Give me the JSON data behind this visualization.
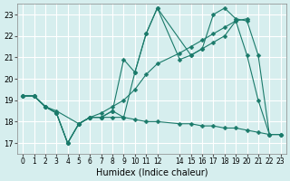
{
  "xlabel": "Humidex (Indice chaleur)",
  "background_color": "#d6eeee",
  "grid_color": "#ffffff",
  "line_color": "#1a7a6a",
  "xlim": [
    -0.5,
    23.5
  ],
  "ylim": [
    16.5,
    23.5
  ],
  "yticks": [
    17,
    18,
    19,
    20,
    21,
    22,
    23
  ],
  "xticks": [
    0,
    1,
    2,
    3,
    4,
    5,
    6,
    7,
    8,
    9,
    10,
    11,
    12,
    14,
    15,
    16,
    17,
    18,
    19,
    20,
    21,
    22,
    23
  ],
  "series": [
    {
      "x": [
        0,
        1,
        2,
        3,
        4,
        5,
        6,
        7,
        8,
        9,
        10,
        11,
        12,
        15,
        16,
        17,
        18,
        19,
        20,
        21,
        22,
        23
      ],
      "y": [
        19.2,
        19.2,
        18.7,
        18.4,
        17.0,
        17.9,
        18.2,
        18.2,
        18.5,
        20.9,
        20.3,
        22.1,
        23.3,
        21.1,
        21.4,
        23.0,
        23.3,
        22.8,
        22.7,
        21.1,
        17.4,
        17.4
      ]
    },
    {
      "x": [
        0,
        1,
        2,
        3,
        4,
        5,
        6,
        7,
        8,
        9,
        10,
        11,
        12,
        14,
        15,
        16,
        17,
        18,
        19,
        20,
        21,
        22,
        23
      ],
      "y": [
        19.2,
        19.2,
        18.7,
        18.4,
        17.0,
        17.9,
        18.2,
        18.2,
        18.5,
        18.2,
        20.3,
        22.1,
        23.3,
        20.9,
        21.1,
        21.4,
        21.7,
        22.0,
        22.7,
        21.1,
        19.0,
        17.4,
        17.4
      ]
    },
    {
      "x": [
        0,
        1,
        2,
        3,
        5,
        6,
        7,
        8,
        9,
        10,
        11,
        12,
        14,
        15,
        16,
        17,
        18,
        19,
        20
      ],
      "y": [
        19.2,
        19.2,
        18.7,
        18.5,
        17.9,
        18.2,
        18.4,
        18.7,
        19.0,
        19.5,
        20.2,
        20.7,
        21.2,
        21.5,
        21.8,
        22.1,
        22.4,
        22.7,
        22.8
      ]
    },
    {
      "x": [
        0,
        1,
        2,
        3,
        4,
        5,
        6,
        7,
        8,
        9,
        10,
        11,
        12,
        14,
        15,
        16,
        17,
        18,
        19,
        20,
        21,
        22,
        23
      ],
      "y": [
        19.2,
        19.2,
        18.7,
        18.4,
        17.0,
        17.9,
        18.2,
        18.2,
        18.2,
        18.2,
        18.1,
        18.0,
        18.0,
        17.9,
        17.9,
        17.8,
        17.8,
        17.7,
        17.7,
        17.6,
        17.5,
        17.4,
        17.4
      ]
    }
  ]
}
